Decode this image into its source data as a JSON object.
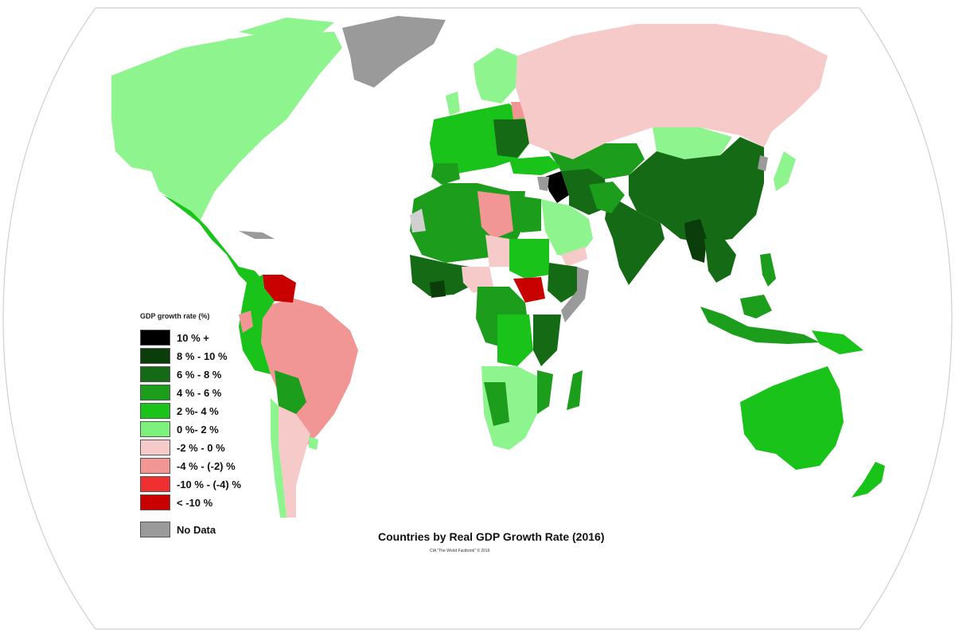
{
  "title": "Countries by Real GDP Growth Rate (2016)",
  "source": "CIA \"The World Factbook\" © 2016",
  "legend": {
    "title": "GDP growth rate (%)",
    "items": [
      {
        "label": "10 % +",
        "color": "#000000"
      },
      {
        "label": "8 % - 10 %",
        "color": "#0a3d0a"
      },
      {
        "label": "6 % - 8 %",
        "color": "#156b15"
      },
      {
        "label": "4 % - 6 %",
        "color": "#1c9e1c"
      },
      {
        "label": "2 %- 4 %",
        "color": "#19c319"
      },
      {
        "label": "0 %- 2 %",
        "color": "#7cf27c"
      },
      {
        "label": "-2 % - 0 %",
        "color": "#f7caca"
      },
      {
        "label": "-4 % - (-2) %",
        "color": "#f29595"
      },
      {
        "label": "-10 % - (-4) %",
        "color": "#f03030"
      },
      {
        "label": "< -10 %",
        "color": "#c80000"
      }
    ],
    "no_data": {
      "label": "No Data",
      "color": "#9a9a9a"
    }
  }
}
